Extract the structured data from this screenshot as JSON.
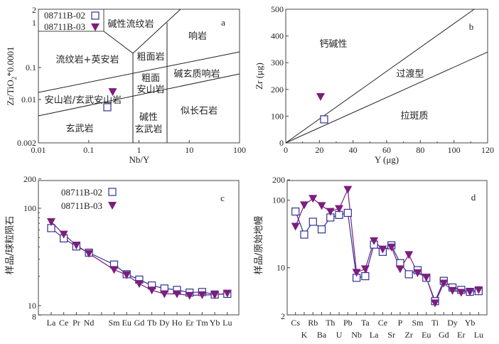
{
  "colors": {
    "sample_02": "#2e3192",
    "sample_03": "#7d1d7e"
  },
  "chart_data": [
    {
      "type": "scatter",
      "panel_label": "a",
      "xlabel": "Nb/Y",
      "ylabel": {
        "main": "Zr/TiO",
        "sub": "2",
        "tail": "*0.0001"
      },
      "xscale": "log",
      "yscale": "log",
      "xlim": [
        0.01,
        100
      ],
      "ylim": [
        0.002,
        2
      ],
      "xticks": [
        "0.01",
        "0.1",
        "1",
        "10",
        "100"
      ],
      "yticks": [
        "0.002",
        "0.01",
        "0.1",
        "1",
        "2"
      ],
      "legend": {
        "placement": "top-left",
        "entries": [
          "08711B-02",
          "08711B-03"
        ]
      },
      "series": [
        {
          "name": "08711B-02",
          "marker": "square",
          "x": [
            0.235
          ],
          "y": [
            0.0075
          ]
        },
        {
          "name": "08711B-03",
          "marker": "triangle-down",
          "x": [
            0.3
          ],
          "y": [
            0.0175
          ]
        }
      ],
      "field_labels": [
        "碱性流纹岩",
        "响岩",
        "流纹岩+英安岩",
        "粗面岩",
        "粗面",
        "安山岩",
        "碱玄质响岩",
        "安山岩/玄武安山岩",
        "似长石岩",
        "玄武岩",
        "碱性",
        "玄武岩"
      ]
    },
    {
      "type": "scatter",
      "panel_label": "b",
      "xlabel": "Y (μg)",
      "ylabel": "Zr (μg)",
      "xlim": [
        0,
        120
      ],
      "ylim": [
        0,
        500
      ],
      "xticks": [
        "0",
        "20",
        "40",
        "60",
        "80",
        "100",
        "120"
      ],
      "yticks": [
        "0",
        "100",
        "200",
        "300",
        "400",
        "500"
      ],
      "series": [
        {
          "name": "08711B-02",
          "marker": "square",
          "x": [
            22.8
          ],
          "y": [
            88
          ]
        },
        {
          "name": "08711B-03",
          "marker": "triangle-down",
          "x": [
            20.7
          ],
          "y": [
            173
          ]
        }
      ],
      "boundary_lines": [
        {
          "x": [
            0,
            112
          ],
          "y": [
            0,
            500
          ]
        },
        {
          "x": [
            0,
            120
          ],
          "y": [
            0,
            340
          ]
        }
      ],
      "field_labels": [
        "钙碱性",
        "过渡型",
        "拉斑质"
      ]
    },
    {
      "type": "line",
      "panel_label": "c",
      "ylabel": "样品/球粒陨石",
      "yscale": "log",
      "ylim": [
        8,
        200
      ],
      "yticks": [
        "200",
        "100",
        "10",
        "8"
      ],
      "legend": {
        "placement": "top-left",
        "entries": [
          "08711B-02",
          "08711B-03"
        ]
      },
      "categories": [
        "La",
        "Ce",
        "Pr",
        "Nd",
        "Sm",
        "Eu",
        "Gd",
        "Tb",
        "Dy",
        "Ho",
        "Er",
        "Tm",
        "Yb",
        "Lu"
      ],
      "series": [
        {
          "name": "08711B-02",
          "marker": "square",
          "values": [
            62.5,
            49,
            40.5,
            35,
            26.4,
            21,
            18.5,
            16.1,
            15,
            14.5,
            13.6,
            13.8,
            13,
            13.2
          ]
        },
        {
          "name": "08711B-03",
          "marker": "triangle-down",
          "values": [
            72.6,
            54,
            41.7,
            34.3,
            23.4,
            20.7,
            16.8,
            14.4,
            13.2,
            13.2,
            12.7,
            12.9,
            12.9,
            13.4
          ]
        }
      ]
    },
    {
      "type": "line",
      "panel_label": "d",
      "ylabel": "样品/原始地幔",
      "yscale": "log",
      "ylim": [
        2,
        200
      ],
      "yticks": [
        "200",
        "100",
        "10",
        "2"
      ],
      "categories": [
        "Cs",
        "K",
        "Rb",
        "Ba",
        "Th",
        "U",
        "Pb",
        "Nb",
        "Ta",
        "La",
        "Ce",
        "Sr",
        "P",
        "Zr",
        "Sm",
        "Eu",
        "Ti",
        "Gd",
        "Dy",
        "Er",
        "Yb",
        "Lu"
      ],
      "series": [
        {
          "name": "08711B-02",
          "marker": "square",
          "values": [
            68,
            31,
            48,
            37,
            55.5,
            60.6,
            65,
            7.1,
            7.5,
            22,
            17.2,
            21.5,
            11.7,
            8.0,
            9.2,
            7.1,
            3.2,
            6.4,
            5.1,
            4.7,
            4.4,
            4.5
          ]
        },
        {
          "name": "08711B-03",
          "marker": "triangle-down",
          "values": [
            41,
            85,
            106,
            83,
            68,
            75,
            144,
            8.5,
            9.6,
            25,
            18.8,
            20.2,
            9.6,
            15.6,
            8.4,
            7.2,
            3.0,
            5.9,
            4.6,
            4.3,
            4.4,
            4.7
          ]
        }
      ]
    }
  ]
}
